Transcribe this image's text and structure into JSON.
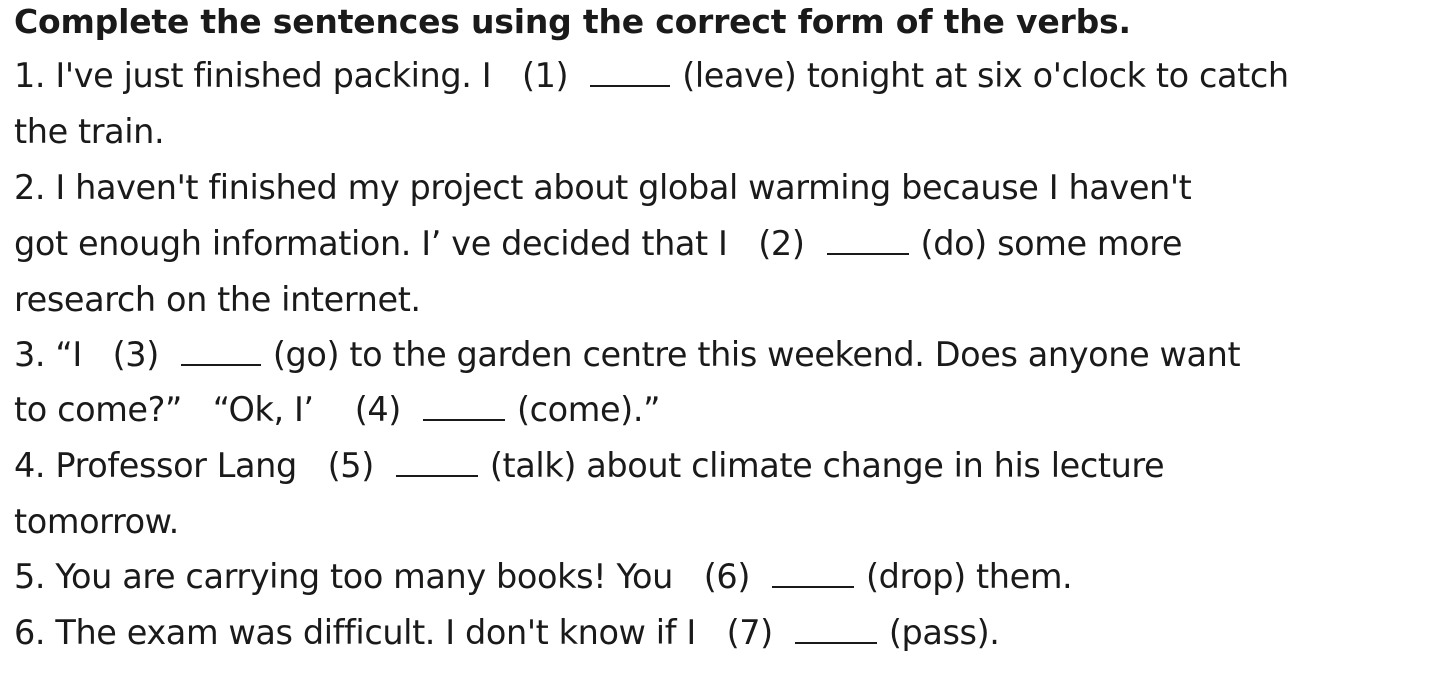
{
  "worksheet": {
    "title": "Complete the sentences using the correct form of the verbs.",
    "lines": [
      {
        "pre": "1. I've just finished packing. I",
        "num": "(1)",
        "blank": "",
        "post": "(leave) tonight at six o'clock to catch"
      },
      {
        "text": "the train."
      },
      {
        "text": "2. I haven't finished my project about global warming because I haven't"
      },
      {
        "pre": "got enough information. I’ ve decided that I",
        "num": "(2)",
        "blank": "",
        "post": "(do) some more"
      },
      {
        "text": "research on the internet."
      },
      {
        "pre": "3. “I",
        "num": "(3)",
        "blank": "",
        "post": "(go) to the garden centre this weekend. Does anyone want"
      },
      {
        "pre": "to come?”   “Ok, I’",
        "num": "(4)",
        "blank": "",
        "post": "(come).”"
      },
      {
        "pre": "4. Professor Lang",
        "num": "(5)",
        "blank": "",
        "post": "(talk) about climate change in his lecture"
      },
      {
        "text": "tomorrow."
      },
      {
        "pre": "5. You are carrying too many books! You",
        "num": "(6)",
        "blank": "",
        "post": "(drop) them."
      },
      {
        "pre": "6. The exam was difficult. I don't know if I",
        "num": "(7)",
        "blank": "",
        "post": "(pass)."
      }
    ]
  }
}
